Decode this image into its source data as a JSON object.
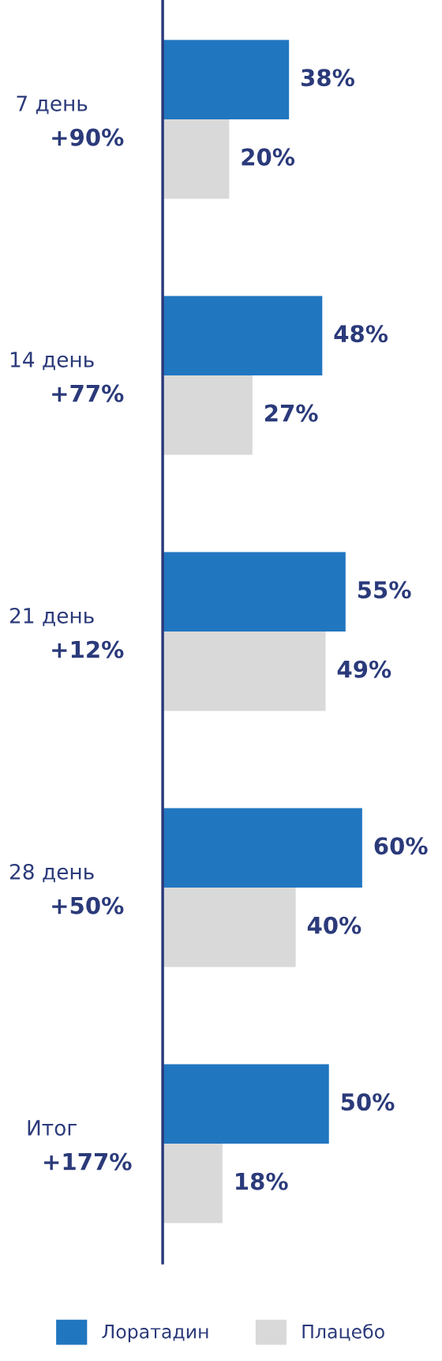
{
  "chart_data": {
    "type": "bar",
    "orientation": "horizontal",
    "categories": [
      "7 день",
      "14 день",
      "21 день",
      "28 день",
      "Итог"
    ],
    "annotations": [
      "+90%",
      "+77%",
      "+12%",
      "+50%",
      "+177%"
    ],
    "series": [
      {
        "name": "Лоратадин",
        "color": "#2176c0",
        "values": [
          38,
          48,
          55,
          60,
          50
        ],
        "value_labels": [
          "38%",
          "48%",
          "55%",
          "60%",
          "50%"
        ]
      },
      {
        "name": "Плацебо",
        "color": "#d9d9d9",
        "values": [
          20,
          27,
          49,
          40,
          18
        ],
        "value_labels": [
          "20%",
          "27%",
          "49%",
          "40%",
          "18%"
        ]
      }
    ],
    "tick_labels": "y",
    "grid": false,
    "legend": "bottom"
  }
}
